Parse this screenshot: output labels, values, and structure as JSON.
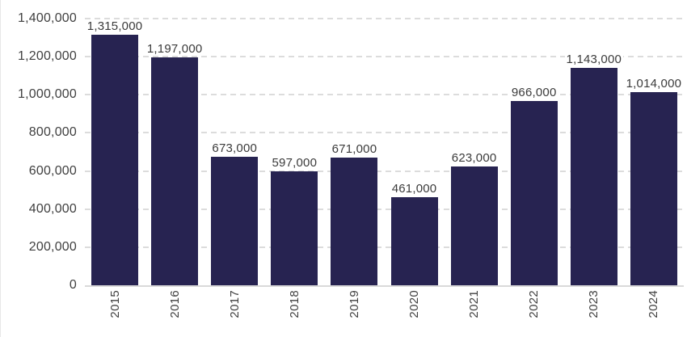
{
  "chart_data": {
    "type": "bar",
    "title": "",
    "xlabel": "",
    "ylabel": "",
    "categories": [
      "2015",
      "2016",
      "2017",
      "2018",
      "2019",
      "2020",
      "2021",
      "2022",
      "2023",
      "2024"
    ],
    "values": [
      1315000,
      1197000,
      673000,
      597000,
      671000,
      461000,
      623000,
      966000,
      1143000,
      1014000
    ],
    "value_labels": [
      "1,315,000",
      "1,197,000",
      "673,000",
      "597,000",
      "671,000",
      "461,000",
      "623,000",
      "966,000",
      "1,143,000",
      "1,014,000"
    ],
    "ylim": [
      0,
      1400000
    ],
    "y_ticks": [
      "0",
      "200,000",
      "400,000",
      "600,000",
      "800,000",
      "1,000,000",
      "1,200,000",
      "1,400,000"
    ],
    "grid": "horizontal-dashed",
    "legend": "none",
    "colors": {
      "bar": "#272351",
      "grid": "#dcdcdc",
      "axis_line": "#d9d9d9",
      "text": "#404040"
    }
  }
}
